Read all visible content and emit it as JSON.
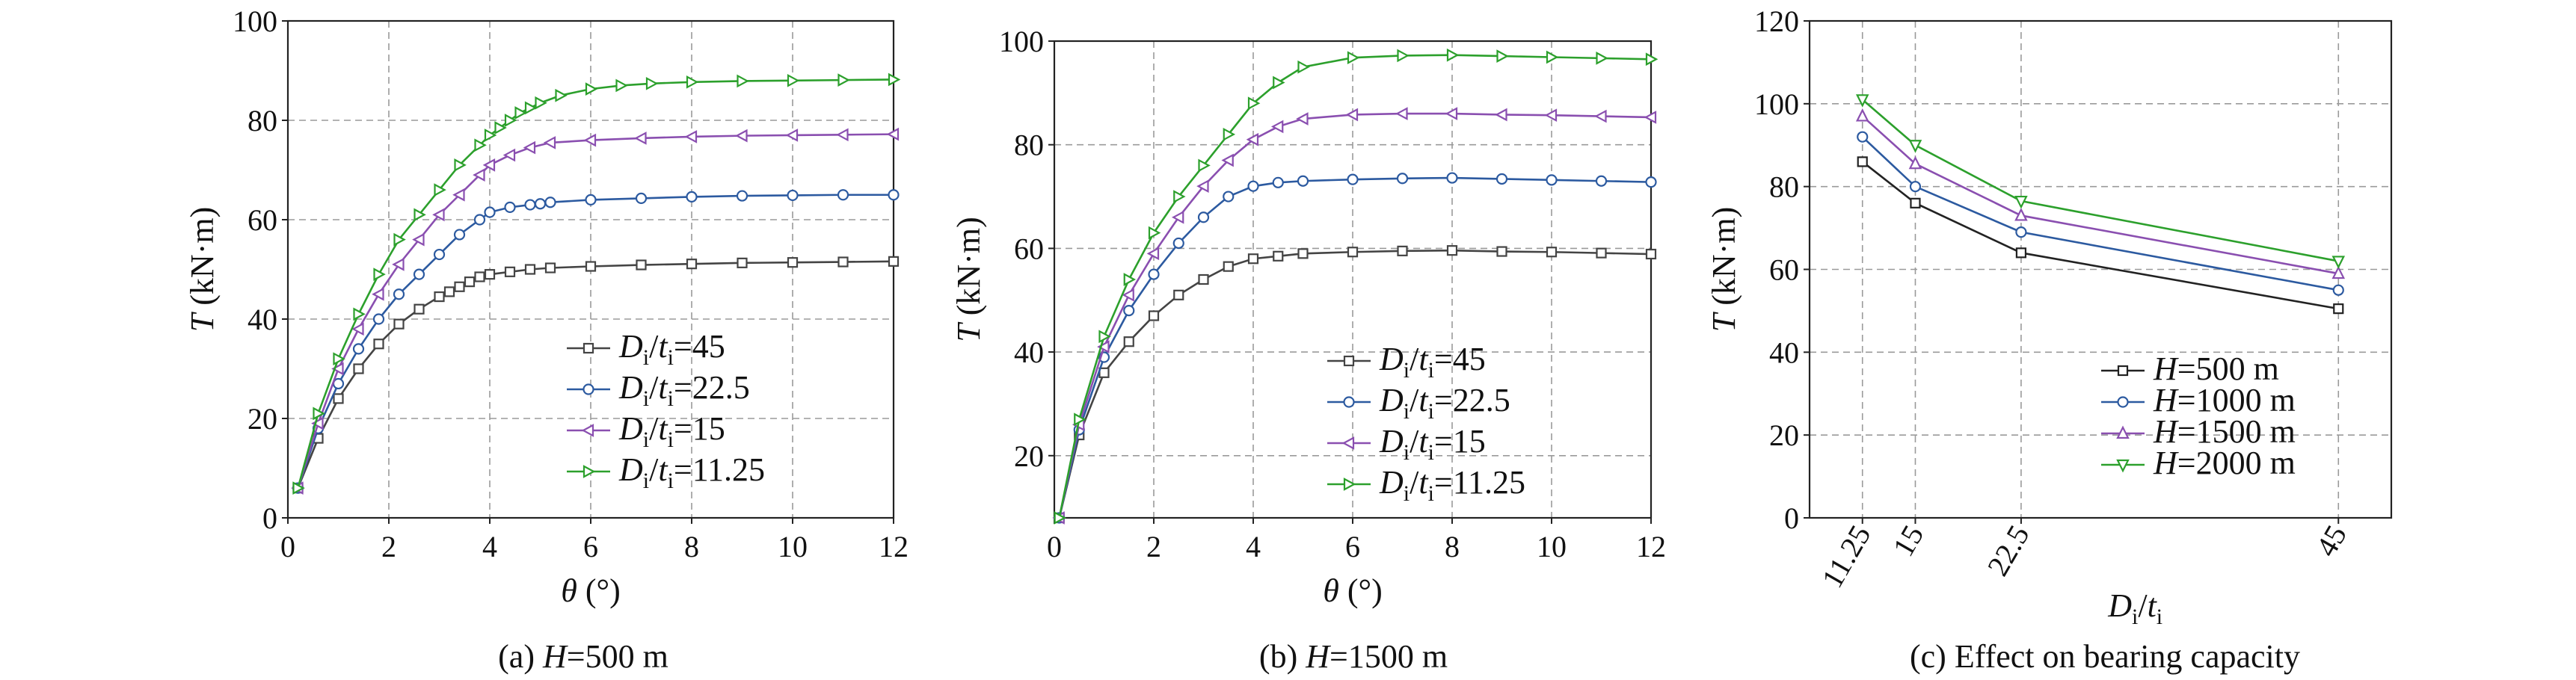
{
  "figure": {
    "captions": [
      {
        "letter": "(a) ",
        "var": "H",
        "rest": "=500 m"
      },
      {
        "letter": "(b) ",
        "var": "H",
        "rest": "=1500 m"
      },
      {
        "letter": "(c) ",
        "var": "",
        "rest": "Effect on bearing capacity"
      }
    ]
  },
  "chart_data": [
    {
      "type": "line",
      "panel": "a",
      "xlabel": "θ (°)",
      "ylabel": "T (kN·m)",
      "xlim": [
        0,
        12
      ],
      "ylim": [
        0,
        100
      ],
      "xticks": [
        0,
        2,
        4,
        6,
        8,
        10,
        12
      ],
      "yticks": [
        0,
        20,
        40,
        60,
        80,
        100
      ],
      "grid": true,
      "legend_position": "bottom-right",
      "series": [
        {
          "name": "Di/ti=45",
          "color": "#444444",
          "marker": "square",
          "x": [
            0.2,
            0.6,
            1,
            1.4,
            1.8,
            2.2,
            2.6,
            3,
            3.2,
            3.4,
            3.6,
            3.8,
            4,
            4.4,
            4.8,
            5.2,
            6,
            7,
            8,
            9,
            10,
            11,
            12
          ],
          "y": [
            6,
            16,
            24,
            30,
            35,
            39,
            42,
            44.5,
            45.5,
            46.5,
            47.5,
            48.5,
            49,
            49.5,
            50,
            50.3,
            50.6,
            50.9,
            51.1,
            51.3,
            51.4,
            51.5,
            51.6
          ]
        },
        {
          "name": "Di/ti=22.5",
          "color": "#2c5aa0",
          "marker": "circle",
          "x": [
            0.2,
            0.6,
            1,
            1.4,
            1.8,
            2.2,
            2.6,
            3,
            3.4,
            3.8,
            4,
            4.4,
            4.8,
            5,
            5.2,
            6,
            7,
            8,
            9,
            10,
            11,
            12
          ],
          "y": [
            6,
            18,
            27,
            34,
            40,
            45,
            49,
            53,
            57,
            60,
            61.5,
            62.5,
            63,
            63.2,
            63.5,
            64,
            64.3,
            64.6,
            64.8,
            64.9,
            65,
            65
          ]
        },
        {
          "name": "Di/ti=15",
          "color": "#8a4fb0",
          "marker": "triangle-left",
          "x": [
            0.2,
            0.6,
            1,
            1.4,
            1.8,
            2.2,
            2.6,
            3,
            3.4,
            3.8,
            4,
            4.4,
            4.8,
            5.2,
            6,
            7,
            8,
            9,
            10,
            11,
            12
          ],
          "y": [
            6,
            19,
            30,
            38,
            45,
            51,
            56,
            61,
            65,
            69,
            71,
            73,
            74.5,
            75.5,
            76,
            76.4,
            76.7,
            76.9,
            77,
            77.1,
            77.2
          ]
        },
        {
          "name": "Di/ti=11.25",
          "color": "#2ca02c",
          "marker": "triangle-right",
          "x": [
            0.2,
            0.6,
            1,
            1.4,
            1.8,
            2.2,
            2.6,
            3,
            3.4,
            3.8,
            4,
            4.2,
            4.4,
            4.6,
            4.8,
            5,
            5.4,
            6,
            6.6,
            7.2,
            8,
            9,
            10,
            11,
            12
          ],
          "y": [
            6,
            21,
            32,
            41,
            49,
            56,
            61,
            66,
            71,
            75,
            77,
            78.5,
            80,
            81.5,
            82.5,
            83.5,
            85,
            86.3,
            87,
            87.4,
            87.7,
            87.9,
            88,
            88.1,
            88.2
          ]
        }
      ]
    },
    {
      "type": "line",
      "panel": "b",
      "xlabel": "θ (°)",
      "ylabel": "T (kN·m)",
      "xlim": [
        0,
        12
      ],
      "ylim": [
        8,
        100
      ],
      "xticks": [
        0,
        2,
        4,
        6,
        8,
        10,
        12
      ],
      "yticks": [
        20,
        40,
        60,
        80,
        100
      ],
      "grid": true,
      "legend_position": "bottom-right",
      "series": [
        {
          "name": "Di/ti=45",
          "color": "#444444",
          "marker": "square",
          "x": [
            0.1,
            0.5,
            1,
            1.5,
            2,
            2.5,
            3,
            3.5,
            4,
            4.5,
            5,
            6,
            7,
            8,
            9,
            10,
            11,
            12
          ],
          "y": [
            8,
            24,
            36,
            42,
            47,
            51,
            54,
            56.5,
            58,
            58.5,
            59,
            59.3,
            59.5,
            59.6,
            59.4,
            59.3,
            59.1,
            58.9
          ]
        },
        {
          "name": "Di/ti=22.5",
          "color": "#2c5aa0",
          "marker": "circle",
          "x": [
            0.1,
            0.5,
            1,
            1.5,
            2,
            2.5,
            3,
            3.5,
            4,
            4.5,
            5,
            6,
            7,
            8,
            9,
            10,
            11,
            12
          ],
          "y": [
            8,
            25,
            39,
            48,
            55,
            61,
            66,
            70,
            72,
            72.7,
            73,
            73.3,
            73.5,
            73.6,
            73.4,
            73.2,
            73,
            72.8
          ]
        },
        {
          "name": "Di/ti=15",
          "color": "#8a4fb0",
          "marker": "triangle-left",
          "x": [
            0.1,
            0.5,
            1,
            1.5,
            2,
            2.5,
            3,
            3.5,
            4,
            4.5,
            5,
            6,
            7,
            8,
            9,
            10,
            11,
            12
          ],
          "y": [
            8,
            26,
            41,
            51,
            59,
            66,
            72,
            77,
            81,
            83.5,
            85,
            85.8,
            86,
            86,
            85.8,
            85.7,
            85.5,
            85.3
          ]
        },
        {
          "name": "Di/ti=11.25",
          "color": "#2ca02c",
          "marker": "triangle-right",
          "x": [
            0.1,
            0.5,
            1,
            1.5,
            2,
            2.5,
            3,
            3.5,
            4,
            4.5,
            5,
            6,
            7,
            8,
            9,
            10,
            11,
            12
          ],
          "y": [
            8,
            27,
            43,
            54,
            63,
            70,
            76,
            82,
            88,
            92,
            95,
            96.8,
            97.2,
            97.3,
            97.1,
            96.9,
            96.7,
            96.5
          ]
        }
      ]
    },
    {
      "type": "line",
      "panel": "c",
      "xlabel": "Di/ti",
      "ylabel": "T (kN·m)",
      "categories": [
        "11.25",
        "15",
        "22.5",
        "45"
      ],
      "x": [
        11.25,
        15,
        22.5,
        45
      ],
      "xlim": [
        7.5,
        48.75
      ],
      "ylim": [
        0,
        120
      ],
      "yticks": [
        0,
        20,
        40,
        60,
        80,
        100,
        120
      ],
      "grid": true,
      "legend_position": "bottom-right",
      "series": [
        {
          "name": "H=500 m",
          "color": "#222222",
          "marker": "square",
          "y": [
            86,
            76,
            64,
            50.5
          ]
        },
        {
          "name": "H=1000 m",
          "color": "#2c5aa0",
          "marker": "circle",
          "y": [
            92,
            80,
            69,
            55
          ]
        },
        {
          "name": "H=1500 m",
          "color": "#8a4fb0",
          "marker": "triangle-up",
          "y": [
            97,
            85.5,
            73,
            59
          ]
        },
        {
          "name": "H=2000 m",
          "color": "#2ca02c",
          "marker": "triangle-down",
          "y": [
            101,
            90,
            76.5,
            62
          ]
        }
      ]
    }
  ]
}
